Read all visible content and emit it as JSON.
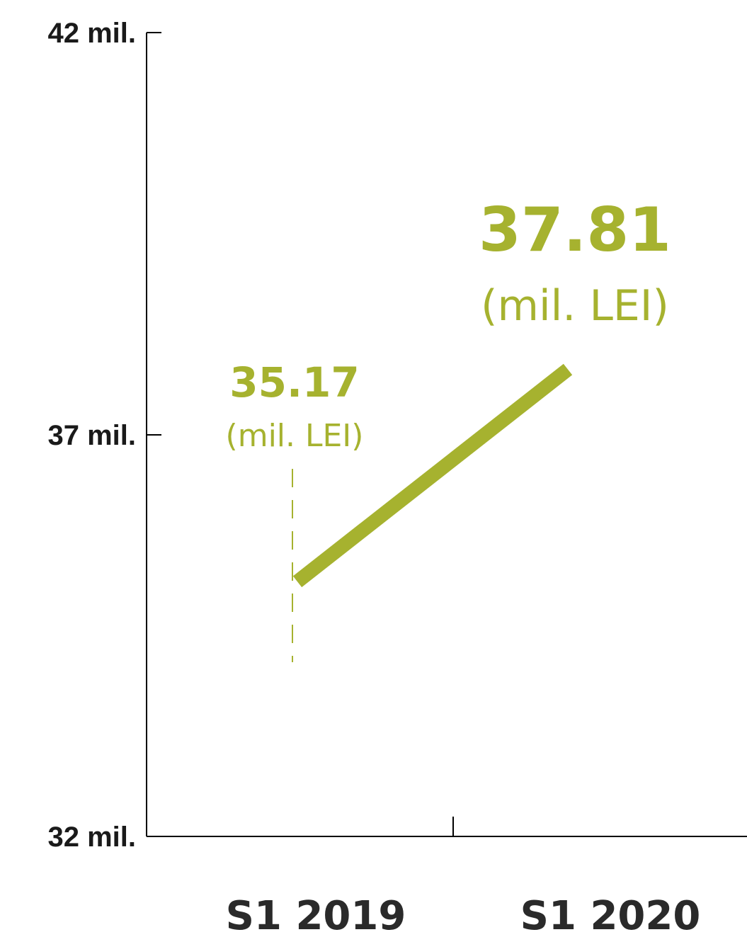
{
  "colors": {
    "accent": "#a6b22f",
    "axis": "#000000",
    "text": "#1a1a1a"
  },
  "chart_data": {
    "type": "line",
    "x": [
      "S1 2019",
      "S1 2020"
    ],
    "series": [
      {
        "values": [
          35.17,
          37.81
        ]
      }
    ],
    "ylim": [
      32,
      42
    ],
    "yticks": [
      42,
      37,
      32
    ],
    "ytick_labels": [
      "42 mil.",
      "37 mil.",
      "32 mil."
    ],
    "xtick_labels": [
      "S1 2019",
      "S1 2020"
    ],
    "data_labels": [
      {
        "value": "35.17",
        "unit": "(mil. LEI)"
      },
      {
        "value": "37.81",
        "unit": "(mil. LEI)"
      }
    ],
    "grid": false
  }
}
